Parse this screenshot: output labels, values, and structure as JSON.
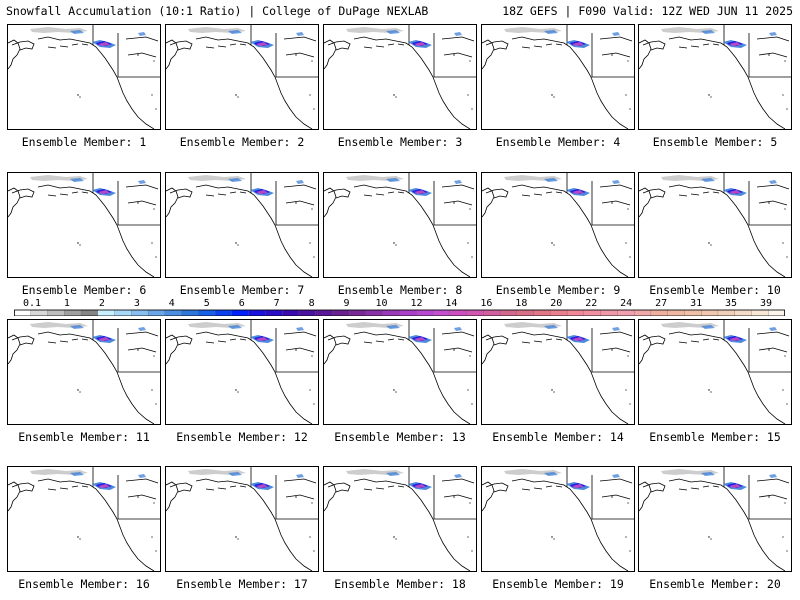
{
  "header": {
    "left": "Snowfall Accumulation (10:1 Ratio) | College of DuPage NEXLAB",
    "right": "18Z GEFS | F090 Valid: 12Z WED JUN 11 2025"
  },
  "panels": [
    {
      "caption": "Ensemble Member: 1"
    },
    {
      "caption": "Ensemble Member: 2"
    },
    {
      "caption": "Ensemble Member: 3"
    },
    {
      "caption": "Ensemble Member: 4"
    },
    {
      "caption": "Ensemble Member: 5"
    },
    {
      "caption": "Ensemble Member: 6"
    },
    {
      "caption": "Ensemble Member: 7"
    },
    {
      "caption": "Ensemble Member: 8"
    },
    {
      "caption": "Ensemble Member: 9"
    },
    {
      "caption": "Ensemble Member: 10"
    },
    {
      "caption": "Ensemble Member: 11"
    },
    {
      "caption": "Ensemble Member: 12"
    },
    {
      "caption": "Ensemble Member: 13"
    },
    {
      "caption": "Ensemble Member: 14"
    },
    {
      "caption": "Ensemble Member: 15"
    },
    {
      "caption": "Ensemble Member: 16"
    },
    {
      "caption": "Ensemble Member: 17"
    },
    {
      "caption": "Ensemble Member: 18"
    },
    {
      "caption": "Ensemble Member: 19"
    },
    {
      "caption": "Ensemble Member: 20"
    }
  ],
  "colorbar": {
    "ticks": [
      "0.1",
      "1",
      "2",
      "3",
      "4",
      "5",
      "6",
      "7",
      "8",
      "9",
      "10",
      "12",
      "14",
      "16",
      "18",
      "20",
      "22",
      "24",
      "27",
      "31",
      "35",
      "39"
    ],
    "colors": [
      "#ffffff",
      "#d9d9d9",
      "#bdbdbd",
      "#a0a0a0",
      "#858585",
      "#c8f0ff",
      "#a8d8f8",
      "#88bff0",
      "#6aa6e8",
      "#4c8ee0",
      "#2e76d8",
      "#1860e8",
      "#0a40f0",
      "#0020ff",
      "#1a10e0",
      "#2a0cc8",
      "#3a0ab0",
      "#4a10a0",
      "#5a1898",
      "#6a2090",
      "#7a2898",
      "#8a30a8",
      "#9a38b8",
      "#aa40c8",
      "#b848d0",
      "#c450d0",
      "#cc50c0",
      "#d058b0",
      "#d060a0",
      "#d06890",
      "#d87088",
      "#e07888",
      "#e88090",
      "#f08898",
      "#f090a0",
      "#f098a8",
      "#f0a0b0",
      "#f0a8a8",
      "#f0b0a0",
      "#f0b8a0",
      "#f0c0a8",
      "#f0c8b0",
      "#f0d0b8",
      "#f4dcc8",
      "#f8e8d8",
      "#fcf4ec"
    ]
  },
  "legend_colors": {
    "land_border": "#000000",
    "snow_light": "#c0c0c0",
    "snow_blue": "#2e76d8",
    "snow_heavy": "#1a10e0",
    "snow_pink": "#cc50c0"
  }
}
